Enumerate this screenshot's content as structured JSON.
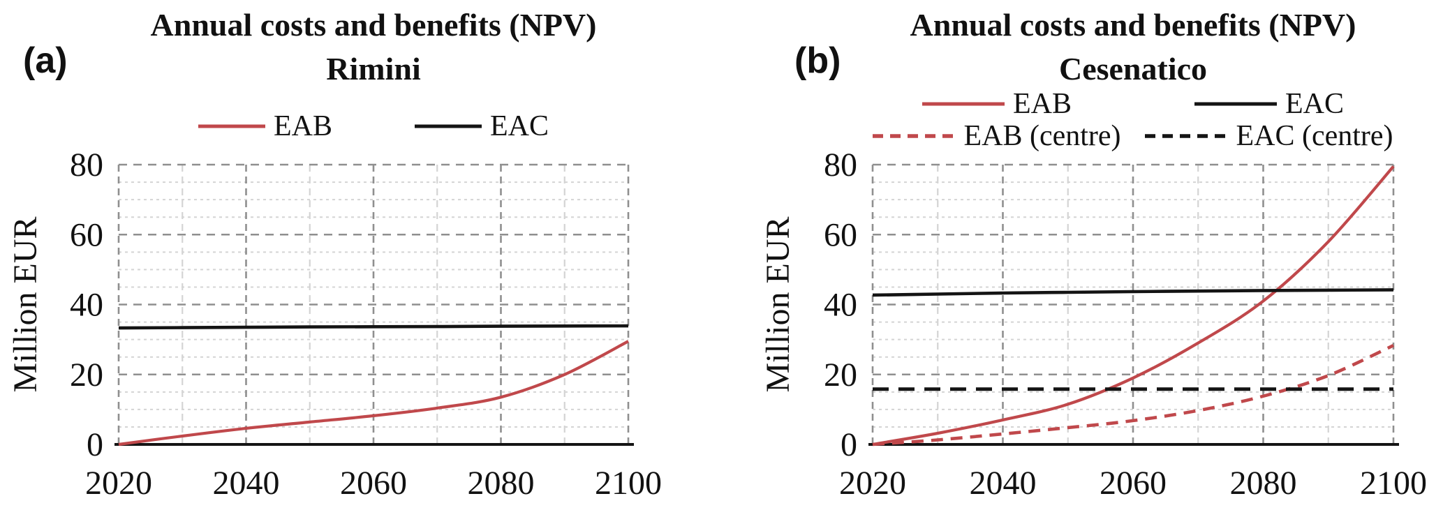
{
  "colors": {
    "eab_red": "#c0484b",
    "eac_black": "#141414",
    "grid_major": "#8f8f8f",
    "grid_minor": "#d4d4d4",
    "axis": "#141414",
    "background": "#ffffff"
  },
  "chart_data": [
    {
      "type": "line",
      "panel_label": "(a)",
      "title": "Annual costs and benefits (NPV)",
      "subtitle": "Rimini",
      "ylabel": "Million EUR",
      "xlim": [
        2020,
        2100
      ],
      "ylim": [
        0,
        80
      ],
      "x": [
        2020,
        2030,
        2040,
        2050,
        2060,
        2070,
        2080,
        2090,
        2100
      ],
      "x_ticks": [
        2020,
        2040,
        2060,
        2080,
        2100
      ],
      "y_ticks": [
        0,
        20,
        40,
        60,
        80
      ],
      "y_minor_step": 5,
      "x_minor_step": 10,
      "grid": "dashed major and minor, on",
      "legend_position": "top",
      "legend_rows": [
        [
          "EAB",
          "EAC"
        ]
      ],
      "series": [
        {
          "name": "EAB",
          "color": "#c0484b",
          "style": "solid",
          "values": [
            0,
            2.4,
            4.6,
            6.4,
            8.2,
            10.4,
            13.5,
            20.0,
            29.5
          ]
        },
        {
          "name": "EAC",
          "color": "#141414",
          "style": "solid",
          "values": [
            33.3,
            33.4,
            33.5,
            33.6,
            33.65,
            33.7,
            33.8,
            33.85,
            33.9
          ]
        }
      ]
    },
    {
      "type": "line",
      "panel_label": "(b)",
      "title": "Annual costs and benefits (NPV)",
      "subtitle": "Cesenatico",
      "ylabel": "Million EUR",
      "xlim": [
        2020,
        2100
      ],
      "ylim": [
        0,
        80
      ],
      "x": [
        2020,
        2030,
        2040,
        2050,
        2060,
        2070,
        2080,
        2090,
        2100
      ],
      "x_ticks": [
        2020,
        2040,
        2060,
        2080,
        2100
      ],
      "y_ticks": [
        0,
        20,
        40,
        60,
        80
      ],
      "y_minor_step": 5,
      "x_minor_step": 10,
      "grid": "dashed major and minor, on",
      "legend_position": "top",
      "legend_rows": [
        [
          "EAB",
          "EAC"
        ],
        [
          "EAB (centre)",
          "EAC (centre)"
        ]
      ],
      "series": [
        {
          "name": "EAB",
          "color": "#c0484b",
          "style": "solid",
          "values": [
            0,
            3.2,
            7.0,
            11.5,
            19.0,
            29.0,
            41.0,
            58.0,
            79.5
          ]
        },
        {
          "name": "EAC",
          "color": "#141414",
          "style": "solid",
          "values": [
            42.7,
            43.0,
            43.3,
            43.5,
            43.7,
            43.85,
            44.0,
            44.1,
            44.2
          ]
        },
        {
          "name": "EAB (centre)",
          "color": "#c0484b",
          "style": "dashed",
          "values": [
            0,
            1.3,
            3.0,
            4.8,
            6.8,
            9.7,
            13.8,
            19.7,
            28.3
          ]
        },
        {
          "name": "EAC (centre)",
          "color": "#141414",
          "style": "dashed",
          "values": [
            15.8,
            15.8,
            15.8,
            15.8,
            15.8,
            15.8,
            15.8,
            15.8,
            15.8
          ]
        }
      ]
    }
  ]
}
